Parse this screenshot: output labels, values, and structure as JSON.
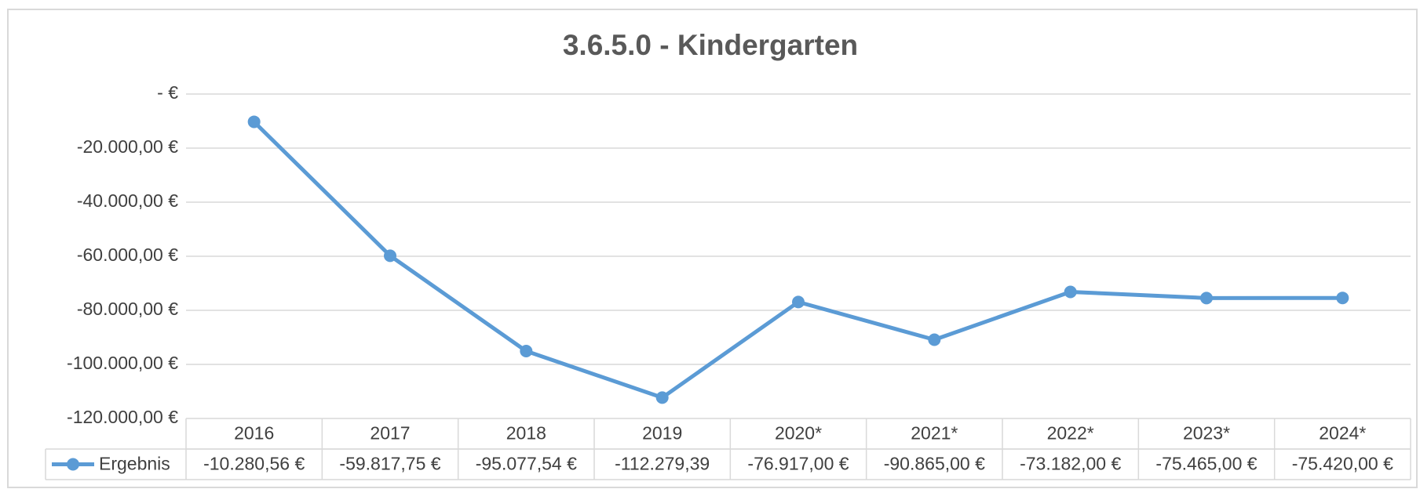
{
  "chart_data": {
    "type": "line",
    "title": "3.6.5.0 - Kindergarten",
    "categories": [
      "2016",
      "2017",
      "2018",
      "2019",
      "2020*",
      "2021*",
      "2022*",
      "2023*",
      "2024*"
    ],
    "series": [
      {
        "name": "Ergebnis",
        "color": "#5b9bd5",
        "values": [
          -10280.56,
          -59817.75,
          -95077.54,
          -112279.39,
          -76917,
          -90865,
          -73182,
          -75465,
          -75420
        ],
        "value_labels": [
          "-10.280,56 €",
          "-59.817,75 €",
          "-95.077,54 €",
          "-112.279,39",
          "-76.917,00 €",
          "-90.865,00 €",
          "-73.182,00 €",
          "-75.465,00 €",
          "-75.420,00 €"
        ]
      }
    ],
    "ylim": [
      -120000,
      0
    ],
    "yticks": [
      {
        "value": 0,
        "label": "-   €"
      },
      {
        "value": -20000,
        "label": "-20.000,00 €"
      },
      {
        "value": -40000,
        "label": "-40.000,00 €"
      },
      {
        "value": -60000,
        "label": "-60.000,00 €"
      },
      {
        "value": -80000,
        "label": "-80.000,00 €"
      },
      {
        "value": -100000,
        "label": "-100.000,00 €"
      },
      {
        "value": -120000,
        "label": "-120.000,00 €"
      }
    ],
    "grid": true
  }
}
